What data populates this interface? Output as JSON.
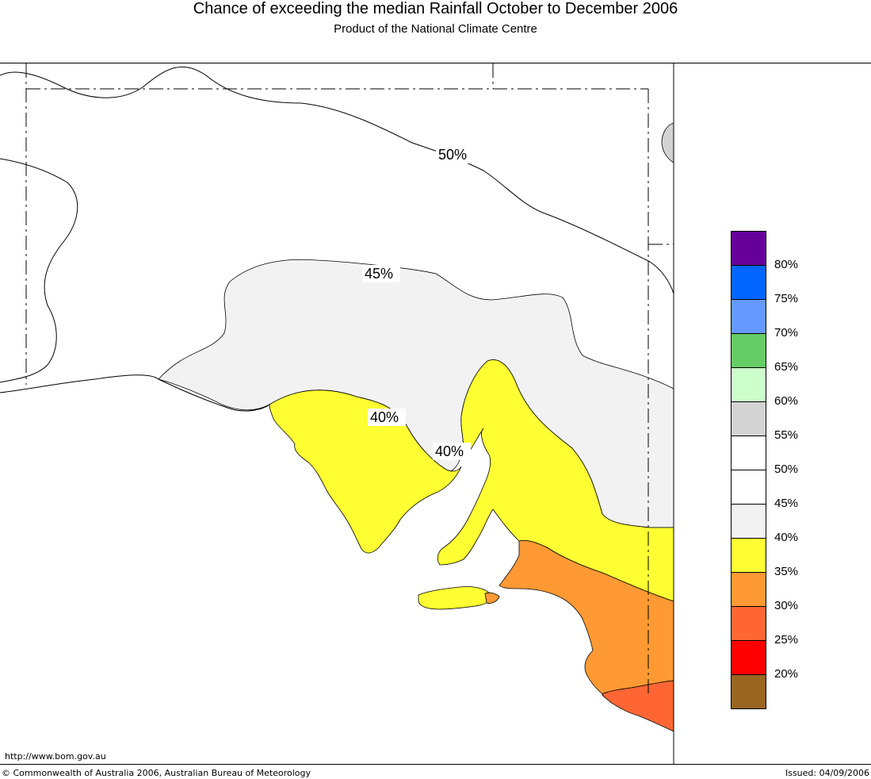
{
  "header": {
    "title": "Chance of exceeding the median Rainfall October to December 2006",
    "subtitle": "Product of the National Climate Centre"
  },
  "map": {
    "contour_labels": [
      "50%",
      "45%",
      "40%",
      "40%"
    ]
  },
  "legend": {
    "items": [
      {
        "label": "80%",
        "color": "#660099"
      },
      {
        "label": "75%",
        "color": "#0066ff"
      },
      {
        "label": "70%",
        "color": "#6699ff"
      },
      {
        "label": "65%",
        "color": "#66cc66"
      },
      {
        "label": "60%",
        "color": "#ccffcc"
      },
      {
        "label": "55%",
        "color": "#d3d3d3"
      },
      {
        "label": "50%",
        "color": "#ffffff"
      },
      {
        "label": "45%",
        "color": "#ffffff"
      },
      {
        "label": "40%",
        "color": "#f2f2f2"
      },
      {
        "label": "35%",
        "color": "#ffff33"
      },
      {
        "label": "30%",
        "color": "#ff9933"
      },
      {
        "label": "25%",
        "color": "#ff6633"
      },
      {
        "label": "20%",
        "color": "#ff0000"
      },
      {
        "label": "",
        "color": "#996622"
      }
    ]
  },
  "footer": {
    "url": "http://www.bom.gov.au",
    "copyright": "© Commonwealth of Australia 2006, Australian Bureau of Meteorology",
    "issued": "Issued: 04/09/2006"
  }
}
